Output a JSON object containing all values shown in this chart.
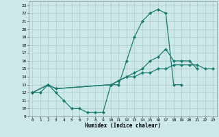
{
  "xlabel": "Humidex (Indice chaleur)",
  "bg_color": "#cce8e8",
  "grid_color": "#aacccc",
  "line_color": "#1a7a6e",
  "xlim": [
    -0.5,
    23.5
  ],
  "ylim": [
    9,
    23.5
  ],
  "xticks": [
    0,
    1,
    2,
    3,
    4,
    5,
    6,
    7,
    8,
    9,
    10,
    11,
    12,
    13,
    14,
    15,
    16,
    17,
    18,
    19,
    20,
    21,
    22,
    23
  ],
  "yticks": [
    9,
    10,
    11,
    12,
    13,
    14,
    15,
    16,
    17,
    18,
    19,
    20,
    21,
    22,
    23
  ],
  "series": [
    {
      "x": [
        0,
        1,
        2,
        3,
        4,
        5,
        6,
        7,
        8,
        9,
        10,
        11,
        12,
        13,
        14,
        15,
        16,
        17,
        18,
        19
      ],
      "y": [
        12,
        12,
        13,
        12,
        11,
        10,
        10,
        9.5,
        9.5,
        9.5,
        13,
        13,
        16,
        19,
        21,
        22,
        22.5,
        22,
        13,
        13
      ]
    },
    {
      "x": [
        0,
        2,
        3,
        10,
        11,
        12,
        13,
        14,
        15,
        16,
        17,
        18,
        19,
        20,
        21
      ],
      "y": [
        12,
        13,
        12.5,
        13,
        13.5,
        14,
        14.5,
        15,
        16,
        16.5,
        17.5,
        16,
        16,
        16,
        15
      ]
    },
    {
      "x": [
        0,
        2,
        3,
        10,
        11,
        12,
        13,
        14,
        15,
        16,
        17,
        18,
        19,
        20,
        21,
        22,
        23
      ],
      "y": [
        12,
        13,
        12.5,
        13,
        13.5,
        14,
        14,
        14.5,
        14.5,
        15,
        15,
        15.5,
        15.5,
        15.5,
        15.5,
        15,
        15
      ]
    }
  ]
}
